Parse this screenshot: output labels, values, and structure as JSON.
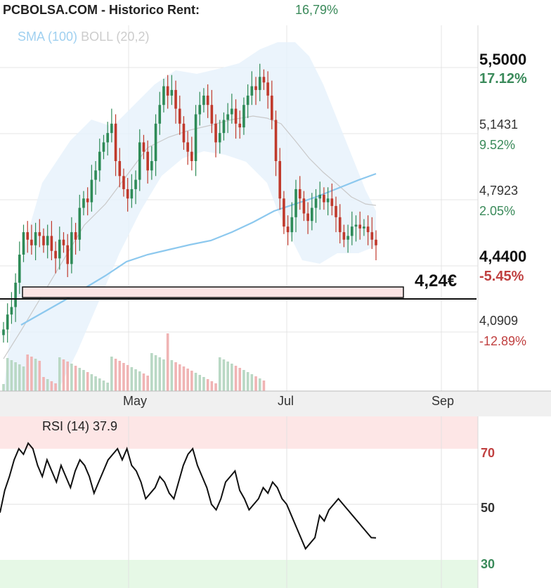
{
  "header": {
    "title": "PCBOLSA.COM - Historico  Rent:",
    "rent": "16,79%"
  },
  "legend": {
    "sma": "SMA (100)",
    "boll": "BOLL (20,2)"
  },
  "target": {
    "label": "4,24€",
    "value": 4.24
  },
  "y_axis": [
    {
      "value": "5,5000",
      "pct": "17.12%",
      "pct_color": "green",
      "bold": true
    },
    {
      "value": "5,1431",
      "pct": "9.52%",
      "pct_color": "green",
      "bold": false
    },
    {
      "value": "4,7923",
      "pct": "2.05%",
      "pct_color": "green",
      "bold": false
    },
    {
      "value": "4,4400",
      "pct": "-5.45%",
      "pct_color": "red",
      "bold": true
    },
    {
      "value": "4,0909",
      "pct": "-12.89%",
      "pct_color": "red",
      "bold": false
    }
  ],
  "months": [
    "May",
    "Jul",
    "Sep"
  ],
  "rsi": {
    "label": "RSI (14) 37.9",
    "levels": [
      "70",
      "50",
      "30"
    ],
    "current": 37.9
  },
  "chart_data": {
    "type": "line",
    "price": {
      "series_points": [
        4.1,
        4.18,
        4.22,
        4.35,
        4.5,
        4.62,
        4.58,
        4.55,
        4.62,
        4.6,
        4.55,
        4.6,
        4.52,
        4.48,
        4.58,
        4.55,
        4.45,
        4.62,
        4.58,
        4.75,
        4.8,
        4.78,
        4.9,
        4.95,
        5.05,
        5.1,
        5.15,
        5.2,
        5.0,
        4.92,
        4.85,
        4.8,
        4.85,
        4.9,
        5.1,
        5.05,
        4.95,
        5.0,
        5.2,
        5.3,
        5.4,
        5.35,
        5.38,
        5.28,
        5.2,
        5.1,
        5.05,
        5.0,
        5.25,
        5.3,
        5.35,
        5.3,
        5.2,
        5.1,
        5.15,
        5.22,
        5.25,
        5.28,
        5.2,
        5.18,
        5.3,
        5.35,
        5.4,
        5.38,
        5.45,
        5.42,
        5.35,
        5.22,
        5.0,
        4.8,
        4.65,
        4.62,
        4.7,
        4.85,
        4.8,
        4.72,
        4.68,
        4.75,
        4.8,
        4.82,
        4.78,
        4.8,
        4.76,
        4.7,
        4.62,
        4.58,
        4.6,
        4.65,
        4.66,
        4.64,
        4.65,
        4.62,
        4.58,
        4.55
      ],
      "sma100": [
        4.05,
        4.08,
        4.11,
        4.14,
        4.17,
        4.2,
        4.23,
        4.26,
        4.3,
        4.34,
        4.38,
        4.4,
        4.42,
        4.44,
        4.45,
        4.47,
        4.48,
        4.49,
        4.5,
        4.52,
        4.54,
        4.56,
        4.58,
        4.6,
        4.62,
        4.63,
        4.64,
        4.65,
        4.66,
        4.67,
        4.68,
        4.7,
        4.72,
        4.74,
        4.75,
        4.76,
        4.77,
        4.78,
        4.79,
        4.8,
        4.81,
        4.82,
        4.83,
        4.84,
        4.85,
        4.86,
        4.87
      ]
    },
    "rsi_series": [
      47,
      55,
      60,
      66,
      70,
      68,
      72,
      70,
      64,
      60,
      66,
      62,
      58,
      64,
      60,
      56,
      62,
      66,
      64,
      60,
      54,
      58,
      62,
      66,
      68,
      70,
      66,
      70,
      64,
      62,
      58,
      52,
      54,
      56,
      60,
      58,
      54,
      52,
      58,
      64,
      68,
      70,
      64,
      60,
      56,
      50,
      48,
      52,
      58,
      60,
      62,
      55,
      52,
      48,
      50,
      52,
      56,
      54,
      58,
      56,
      52,
      50,
      46,
      42,
      38,
      34,
      36,
      38,
      46,
      44,
      48,
      50,
      52,
      50,
      48,
      46,
      44,
      42,
      40,
      38,
      37.9
    ]
  }
}
